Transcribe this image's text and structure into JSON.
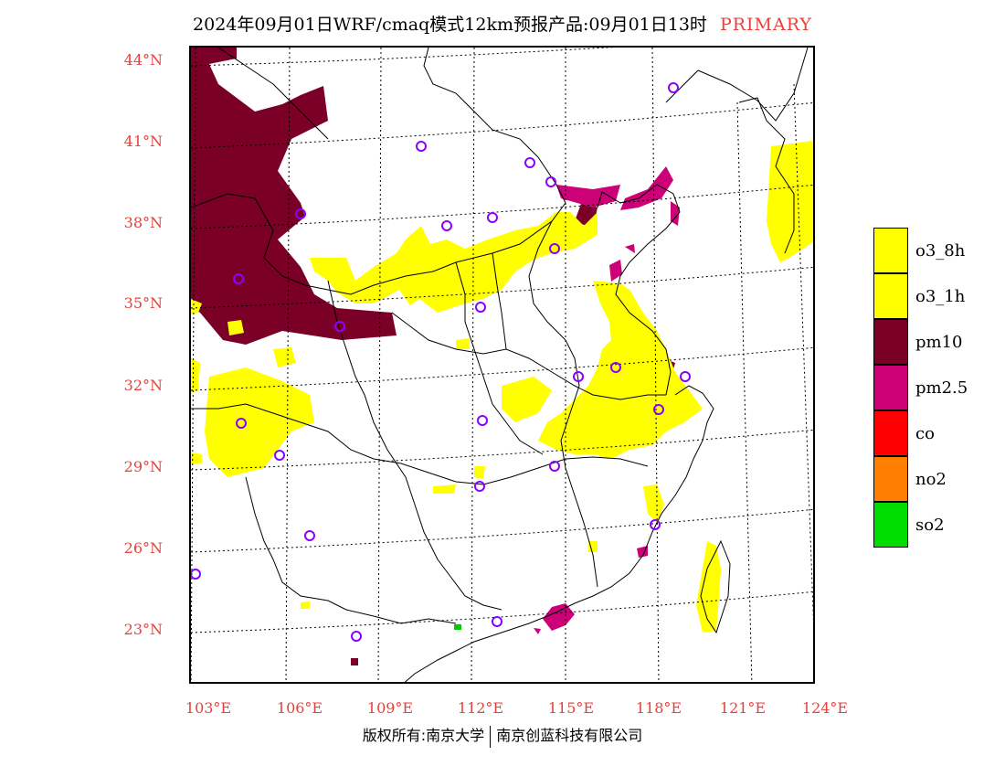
{
  "header": {
    "title": "2024年09月01日WRF/cmaq模式12km预报产品:09月01日13时",
    "tag": "PRIMARY"
  },
  "axes": {
    "lat_labels": [
      "44°N",
      "41°N",
      "38°N",
      "35°N",
      "32°N",
      "29°N",
      "26°N",
      "23°N"
    ],
    "lon_labels": [
      "103°E",
      "106°E",
      "109°E",
      "112°E",
      "115°E",
      "118°E",
      "121°E",
      "124°E"
    ]
  },
  "legend": {
    "items": [
      {
        "label": "o3_8h",
        "color": "#ffff00"
      },
      {
        "label": "o3_1h",
        "color": "#ffff00"
      },
      {
        "label": "pm10",
        "color": "#7a0028"
      },
      {
        "label": "pm2.5",
        "color": "#cc0077"
      },
      {
        "label": "co",
        "color": "#ff0000"
      },
      {
        "label": "no2",
        "color": "#ff7f00"
      },
      {
        "label": "so2",
        "color": "#00dd00"
      }
    ]
  },
  "footer": {
    "left": "版权所有:南京大学",
    "right": "南京创蓝科技有限公司"
  },
  "colors": {
    "axis_label": "#e8413c",
    "station_marker": "#8b00ff"
  }
}
